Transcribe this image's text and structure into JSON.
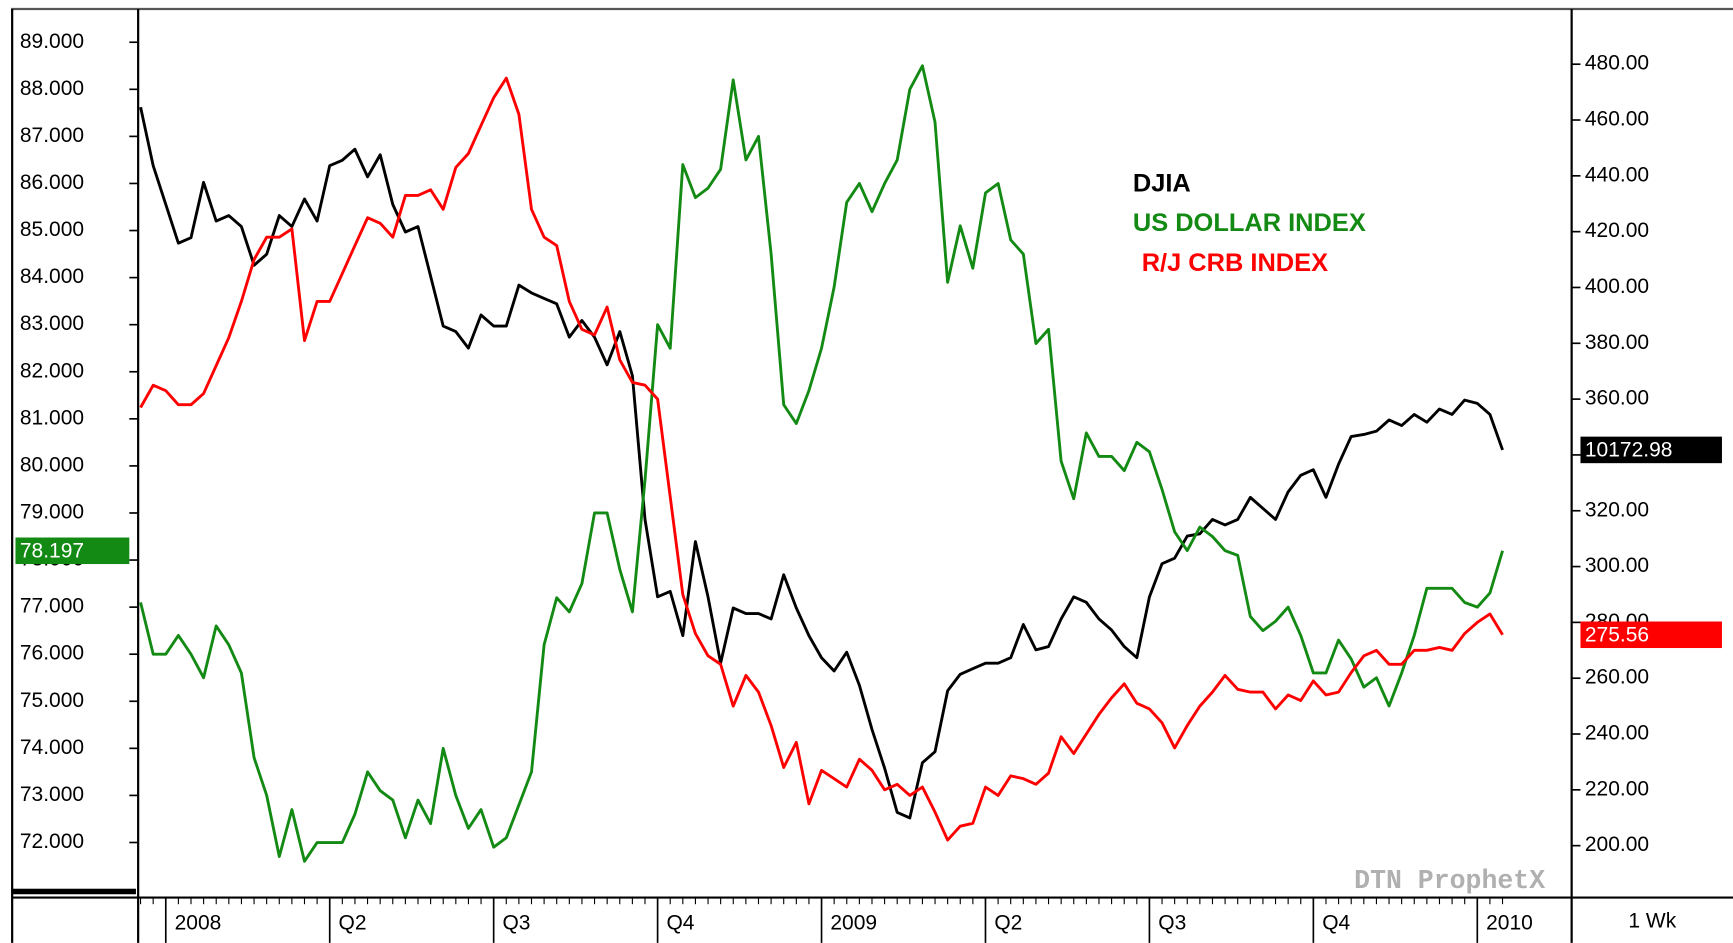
{
  "chart_data": {
    "type": "line",
    "watermark": "DTN ProphetX",
    "interval": "1 Wk",
    "x": [
      -2,
      -1,
      0,
      1,
      2,
      3,
      4,
      5,
      6,
      7,
      8,
      9,
      10,
      11,
      12,
      13,
      14,
      15,
      16,
      17,
      18,
      19,
      20,
      21,
      22,
      23,
      24,
      25,
      26,
      27,
      28,
      29,
      30,
      31,
      32,
      33,
      34,
      35,
      36,
      37,
      38,
      39,
      40,
      41,
      42,
      43,
      44,
      45,
      46,
      47,
      48,
      49,
      50,
      51,
      52,
      53,
      54,
      55,
      56,
      57,
      58,
      59,
      60,
      61,
      62,
      63,
      64,
      65,
      66,
      67,
      68,
      69,
      70,
      71,
      72,
      73,
      74,
      75,
      76,
      77,
      78,
      79,
      80,
      81,
      82,
      83,
      84,
      85,
      86,
      87,
      88,
      89,
      90,
      91,
      92,
      93,
      94,
      95,
      96,
      97,
      98,
      99,
      100,
      101,
      102,
      103,
      104,
      105,
      106
    ],
    "xlim": [
      -2.19,
      111.48
    ],
    "xticks": [
      {
        "value": 0,
        "label": "2008"
      },
      {
        "value": 13,
        "label": "Q2"
      },
      {
        "value": 26,
        "label": "Q3"
      },
      {
        "value": 39,
        "label": "Q4"
      },
      {
        "value": 52,
        "label": "2009"
      },
      {
        "value": 65,
        "label": "Q2"
      },
      {
        "value": 78,
        "label": "Q3"
      },
      {
        "value": 91,
        "label": "Q4"
      },
      {
        "value": 104,
        "label": "2010"
      }
    ],
    "ylim": [
      70.83,
      89.66
    ],
    "yticks": [
      {
        "value": 72,
        "label": "72.000"
      },
      {
        "value": 73,
        "label": "73.000"
      },
      {
        "value": 74,
        "label": "74.000"
      },
      {
        "value": 75,
        "label": "75.000"
      },
      {
        "value": 76,
        "label": "76.000"
      },
      {
        "value": 77,
        "label": "77.000"
      },
      {
        "value": 78,
        "label": "78.000"
      },
      {
        "value": 79,
        "label": "79.000"
      },
      {
        "value": 80,
        "label": "80.000"
      },
      {
        "value": 81,
        "label": "81.000"
      },
      {
        "value": 82,
        "label": "82.000"
      },
      {
        "value": 83,
        "label": "83.000"
      },
      {
        "value": 84,
        "label": "84.000"
      },
      {
        "value": 85,
        "label": "85.000"
      },
      {
        "value": 86,
        "label": "86.000"
      },
      {
        "value": 87,
        "label": "87.000"
      },
      {
        "value": 88,
        "label": "88.000"
      },
      {
        "value": 89,
        "label": "89.000"
      }
    ],
    "y2lim": [
      181.4,
      499.0
    ],
    "y2ticks": [
      {
        "value": 200,
        "label": "200.00"
      },
      {
        "value": 220,
        "label": "220.00"
      },
      {
        "value": 240,
        "label": "240.00"
      },
      {
        "value": 260,
        "label": "260.00"
      },
      {
        "value": 280,
        "label": "280.00"
      },
      {
        "value": 300,
        "label": "300.00"
      },
      {
        "value": 320,
        "label": "320.00"
      },
      {
        "value": 340,
        "label": "340.00"
      },
      {
        "value": 360,
        "label": "360.00"
      },
      {
        "value": 380,
        "label": "380.00"
      },
      {
        "value": 400,
        "label": "400.00"
      },
      {
        "value": 420,
        "label": "420.00"
      },
      {
        "value": 440,
        "label": "440.00"
      },
      {
        "value": 460,
        "label": "460.00"
      },
      {
        "value": 480,
        "label": "480.00"
      }
    ],
    "y3lim": [
      5860,
      14400
    ],
    "series": [
      {
        "name": "DJIA",
        "color": "#000000",
        "axis": "y3",
        "values": [
          13475,
          12911,
          12538,
          12165,
          12218,
          12751,
          12378,
          12431,
          12325,
          11952,
          12058,
          12431,
          12325,
          12591,
          12378,
          12911,
          12964,
          13070,
          12804,
          13017,
          12538,
          12272,
          12325,
          11846,
          11366,
          11313,
          11153,
          11473,
          11366,
          11366,
          11760,
          11686,
          11633,
          11580,
          11260,
          11420,
          11260,
          10993,
          11313,
          10887,
          9503,
          8757,
          8810,
          8384,
          9290,
          8757,
          8118,
          8650,
          8597,
          8597,
          8544,
          8970,
          8650,
          8384,
          8171,
          8043,
          8224,
          7905,
          7479,
          7106,
          6680,
          6627,
          7159,
          7266,
          7852,
          8011,
          8065,
          8118,
          8118,
          8171,
          8491,
          8246,
          8278,
          8544,
          8757,
          8704,
          8544,
          8437,
          8278,
          8171,
          8757,
          9077,
          9130,
          9343,
          9364,
          9503,
          9450,
          9503,
          9716,
          9609,
          9503,
          9769,
          9929,
          9982,
          9716,
          10035,
          10301,
          10322,
          10354,
          10461,
          10408,
          10514,
          10440,
          10567,
          10514,
          10653,
          10621,
          10514,
          10172.98
        ]
      },
      {
        "name": "US DOLLAR INDEX",
        "color": "#138a13",
        "axis": "y",
        "values": [
          77.1,
          76.0,
          76.0,
          76.4,
          76.0,
          75.5,
          76.6,
          76.2,
          75.6,
          73.8,
          73.0,
          71.7,
          72.7,
          71.6,
          72.0,
          72.0,
          72.0,
          72.6,
          73.5,
          73.1,
          72.9,
          72.1,
          72.9,
          72.4,
          74.0,
          73.0,
          72.3,
          72.7,
          71.9,
          72.1,
          72.8,
          73.5,
          76.2,
          77.2,
          76.9,
          77.5,
          79.0,
          79.0,
          77.8,
          76.9,
          79.7,
          83.0,
          82.5,
          86.4,
          85.7,
          85.9,
          86.3,
          88.2,
          86.5,
          87.0,
          84.5,
          81.3,
          80.9,
          81.6,
          82.5,
          83.8,
          85.6,
          86.0,
          85.4,
          86.0,
          86.5,
          88.0,
          88.5,
          87.3,
          83.9,
          85.1,
          84.2,
          85.8,
          86.0,
          84.8,
          84.5,
          82.6,
          82.9,
          80.1,
          79.3,
          80.7,
          80.2,
          80.2,
          79.9,
          80.5,
          80.3,
          79.5,
          78.6,
          78.2,
          78.7,
          78.5,
          78.2,
          78.1,
          76.8,
          76.5,
          76.7,
          77.0,
          76.4,
          75.6,
          75.6,
          76.3,
          75.9,
          75.3,
          75.5,
          74.9,
          75.6,
          76.4,
          77.4,
          77.4,
          77.4,
          77.1,
          77.0,
          77.3,
          78.197
        ]
      },
      {
        "name": "R/J CRB INDEX",
        "color": "#ff0000",
        "axis": "y2",
        "values": [
          357,
          365,
          363,
          358,
          358,
          362,
          372,
          382,
          395,
          410,
          418,
          418,
          421,
          381,
          395,
          395,
          405,
          415,
          425,
          423,
          418,
          433,
          433,
          435,
          428,
          443,
          448,
          458,
          468,
          475,
          462,
          428,
          418,
          415,
          395,
          385,
          383,
          393,
          374,
          366,
          365,
          360,
          325,
          290,
          276,
          268,
          265,
          250,
          261,
          255,
          243,
          228,
          237,
          215,
          227,
          224,
          221,
          231,
          227,
          220,
          222,
          218,
          221,
          212,
          202,
          207,
          208,
          221,
          218,
          225,
          224,
          222,
          226,
          239,
          233,
          240,
          247,
          253,
          258,
          251,
          249,
          244,
          235,
          243,
          250,
          255,
          261,
          256,
          255,
          255,
          249,
          254,
          252,
          259,
          254,
          255,
          262,
          268,
          270,
          265,
          265,
          270,
          270,
          271,
          270,
          276,
          280,
          283,
          275.56
        ]
      }
    ]
  }
}
